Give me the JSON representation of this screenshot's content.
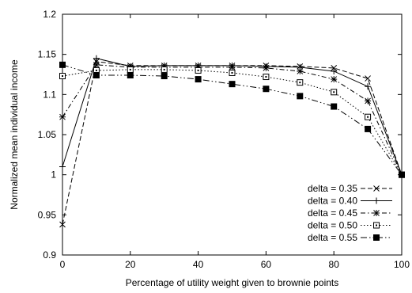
{
  "chart_data": {
    "type": "line",
    "title": "",
    "xlabel": "Percentage of utility weight given to brownie points",
    "ylabel": "Normalized mean individual income",
    "xlim": [
      0,
      100
    ],
    "ylim": [
      0.9,
      1.2
    ],
    "x_ticks": [
      "0",
      "20",
      "40",
      "60",
      "80",
      "100"
    ],
    "y_ticks": [
      "0.9",
      "0.95",
      "1",
      "1.05",
      "1.1",
      "1.15",
      "1.2"
    ],
    "grid": false,
    "legend_position": "bottom-right",
    "x": [
      0,
      10,
      20,
      30,
      40,
      50,
      60,
      70,
      80,
      90,
      100
    ],
    "series": [
      {
        "name": "delta = 0.35",
        "marker": "x",
        "dash": "dashed",
        "values": [
          0.938,
          1.141,
          1.136,
          1.136,
          1.136,
          1.136,
          1.136,
          1.135,
          1.133,
          1.12,
          1.0
        ]
      },
      {
        "name": "delta = 0.40",
        "marker": "plus",
        "dash": "solid",
        "values": [
          1.01,
          1.145,
          1.135,
          1.136,
          1.136,
          1.136,
          1.135,
          1.134,
          1.129,
          1.11,
          1.0
        ]
      },
      {
        "name": "delta = 0.45",
        "marker": "asterisk",
        "dash": "dashdot",
        "values": [
          1.072,
          1.137,
          1.134,
          1.134,
          1.134,
          1.134,
          1.133,
          1.129,
          1.119,
          1.092,
          1.0
        ]
      },
      {
        "name": "delta = 0.50",
        "marker": "box",
        "dash": "dotted",
        "values": [
          1.123,
          1.13,
          1.131,
          1.131,
          1.13,
          1.127,
          1.122,
          1.115,
          1.103,
          1.072,
          1.0
        ]
      },
      {
        "name": "delta = 0.55",
        "marker": "filled-box",
        "dash": "dashdotdot",
        "values": [
          1.137,
          1.124,
          1.124,
          1.123,
          1.119,
          1.113,
          1.107,
          1.098,
          1.085,
          1.057,
          1.0
        ]
      }
    ]
  }
}
